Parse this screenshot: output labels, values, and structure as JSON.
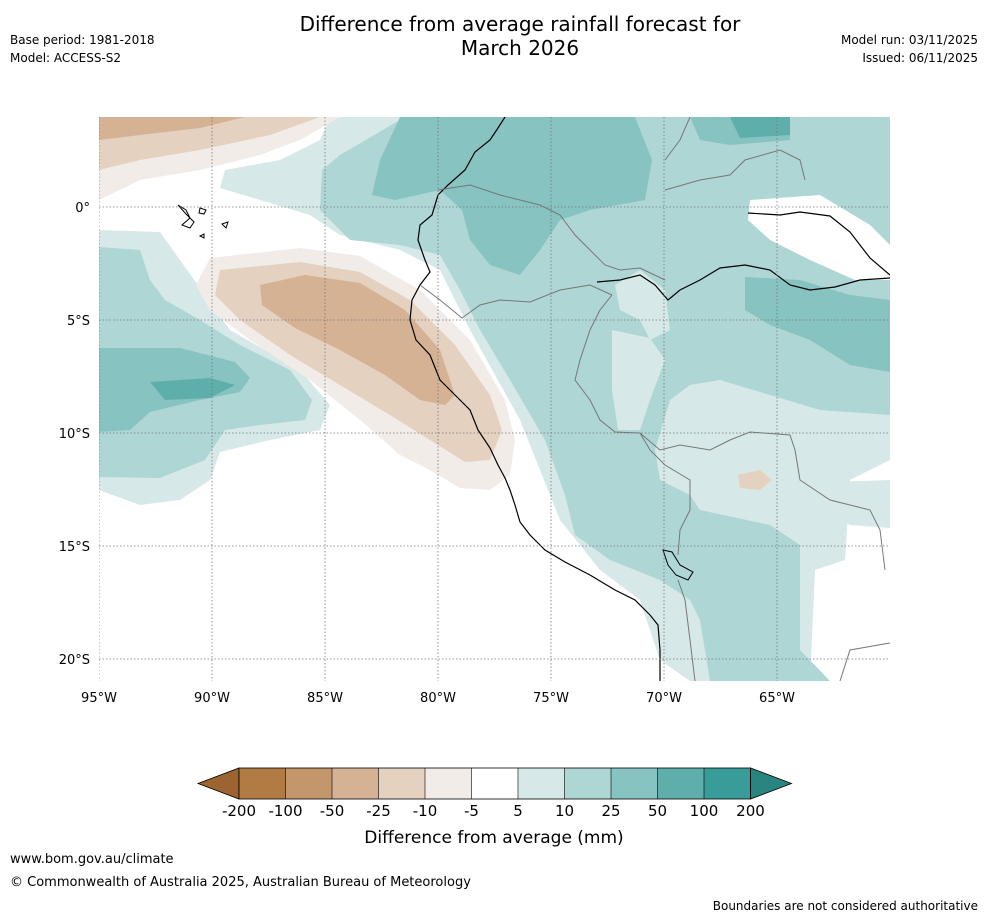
{
  "header": {
    "base_period": "Base period: 1981-2018",
    "model": "Model: ACCESS-S2",
    "title_line1": "Difference from average rainfall forecast for",
    "title_line2": "March 2026",
    "model_run": "Model run: 03/11/2025",
    "issued": "Issued: 06/11/2025"
  },
  "map": {
    "lat_labels": [
      "0°",
      "5°S",
      "10°S",
      "15°S",
      "20°S"
    ],
    "lon_labels": [
      "95°W",
      "90°W",
      "85°W",
      "80°W",
      "75°W",
      "70°W",
      "65°W"
    ]
  },
  "legend": {
    "title": "Difference from average (mm)",
    "tick_labels": [
      "-200",
      "-100",
      "-50",
      "-25",
      "-10",
      "-5",
      "5",
      "10",
      "25",
      "50",
      "100",
      "200"
    ],
    "colors": [
      "#9c6430",
      "#b17b44",
      "#c4966c",
      "#d4b293",
      "#e4d1c0",
      "#f2ece8",
      "#ffffff",
      "#d6e9e8",
      "#aed6d5",
      "#86c3c1",
      "#5eafac",
      "#389d99",
      "#2a8581"
    ]
  },
  "footer": {
    "url": "www.bom.gov.au/climate",
    "copyright": "© Commonwealth of Australia 2025, Australian Bureau of Meteorology",
    "note": "Boundaries are not considered authoritative"
  }
}
